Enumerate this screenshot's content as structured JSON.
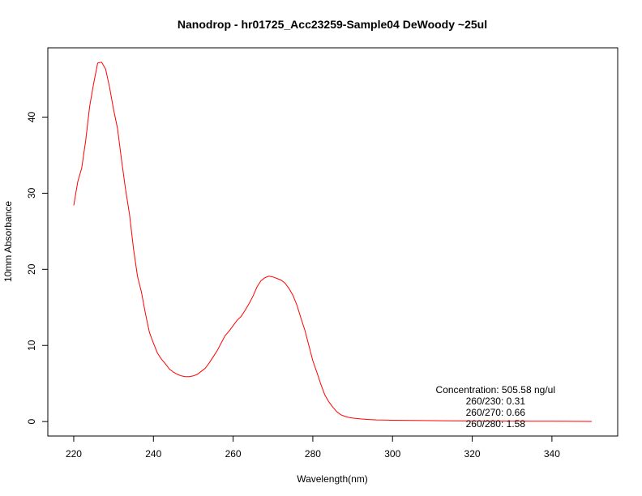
{
  "chart_data": {
    "type": "line",
    "title": "Nanodrop - hr01725_Acc23259-Sample04 DeWoody ~25ul",
    "xlabel": "Wavelength(nm)",
    "ylabel": "10mm Absorbance",
    "xlim": [
      213.5,
      356.5
    ],
    "ylim": [
      -1.9,
      49.1
    ],
    "x_ticks": [
      220,
      240,
      260,
      280,
      300,
      320,
      340
    ],
    "y_ticks": [
      0,
      10,
      20,
      30,
      40
    ],
    "grid": false,
    "line_color": "#ff0000",
    "series": [
      {
        "x": [
          220,
          221,
          222,
          223,
          224,
          225,
          226,
          227,
          228,
          229,
          230,
          231,
          232,
          233,
          234,
          235,
          236,
          237,
          238,
          239,
          240,
          241,
          242,
          243,
          244,
          245,
          246,
          247,
          248,
          249,
          250,
          251,
          252,
          253,
          254,
          255,
          256,
          257,
          258,
          259,
          260,
          261,
          262,
          263,
          264,
          265,
          266,
          267,
          268,
          269,
          270,
          271,
          272,
          273,
          274,
          275,
          276,
          277,
          278,
          279,
          280,
          281,
          282,
          283,
          284,
          285,
          286,
          287,
          288,
          289,
          290,
          292,
          294,
          296,
          298,
          300,
          305,
          310,
          315,
          320,
          325,
          330,
          335,
          340,
          345,
          350
        ],
        "y": [
          28.4,
          31.5,
          33.3,
          36.9,
          41.4,
          44.4,
          47.1,
          47.2,
          46.3,
          43.9,
          41.0,
          38.5,
          34.4,
          30.5,
          27.2,
          22.7,
          19.1,
          17.0,
          14.2,
          11.7,
          10.3,
          9.0,
          8.2,
          7.6,
          6.9,
          6.5,
          6.2,
          6.0,
          5.9,
          5.9,
          6.0,
          6.2,
          6.6,
          7.0,
          7.7,
          8.5,
          9.3,
          10.3,
          11.3,
          11.9,
          12.6,
          13.3,
          13.8,
          14.6,
          15.5,
          16.5,
          17.7,
          18.5,
          18.9,
          19.1,
          19.0,
          18.8,
          18.6,
          18.2,
          17.5,
          16.6,
          15.3,
          13.6,
          12.0,
          10.0,
          8.0,
          6.5,
          4.9,
          3.5,
          2.6,
          1.9,
          1.3,
          0.9,
          0.7,
          0.55,
          0.45,
          0.35,
          0.27,
          0.22,
          0.2,
          0.18,
          0.15,
          0.12,
          0.1,
          0.08,
          0.07,
          0.06,
          0.05,
          0.04,
          0.03,
          0.02
        ]
      }
    ],
    "annotations": [
      "Concentration: 505.58 ng/ul",
      "260/230: 0.31",
      "260/270: 0.66",
      "260/280: 1.58"
    ]
  }
}
